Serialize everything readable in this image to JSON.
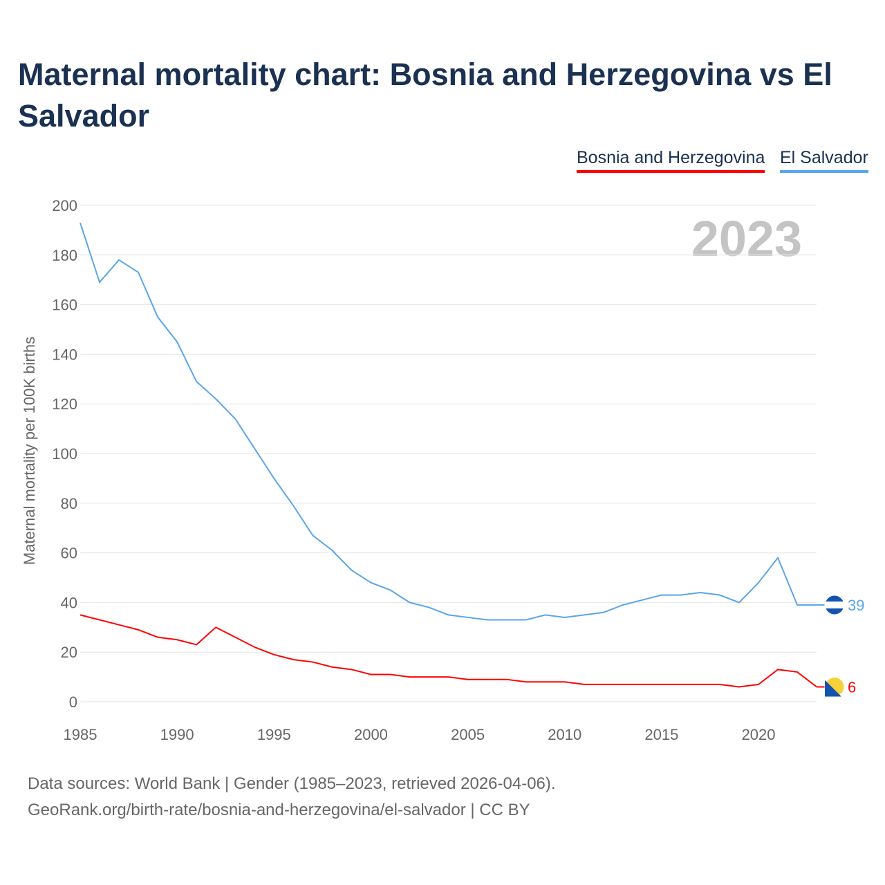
{
  "title": "Maternal mortality chart: Bosnia and Herzegovina vs El Salvador",
  "footer": {
    "line1": "Data sources: World Bank | Gender (1985–2023, retrieved 2026-04-06).",
    "line2": "GeoRank.org/birth-rate/bosnia-and-herzegovina/el-salvador | CC BY"
  },
  "chart_data": {
    "type": "line",
    "title": "Maternal mortality chart: Bosnia and Herzegovina vs El Salvador",
    "ylabel": "Maternal mortality per 100K births",
    "xlabel": "",
    "year_label": "2023",
    "ylim": [
      0,
      200
    ],
    "xlim": [
      1985,
      2023
    ],
    "yticks": [
      0,
      20,
      40,
      60,
      80,
      100,
      120,
      140,
      160,
      180,
      200
    ],
    "xticks": [
      1985,
      1990,
      1995,
      2000,
      2005,
      2010,
      2015,
      2020
    ],
    "grid": true,
    "legend_position": "top-right",
    "x": [
      1985,
      1986,
      1987,
      1988,
      1989,
      1990,
      1991,
      1992,
      1993,
      1994,
      1995,
      1996,
      1997,
      1998,
      1999,
      2000,
      2001,
      2002,
      2003,
      2004,
      2005,
      2006,
      2007,
      2008,
      2009,
      2010,
      2011,
      2012,
      2013,
      2014,
      2015,
      2016,
      2017,
      2018,
      2019,
      2020,
      2021,
      2022,
      2023
    ],
    "series": [
      {
        "name": "Bosnia and Herzegovina",
        "color": "#ff0000",
        "end_label": "6",
        "values": [
          35,
          33,
          31,
          29,
          26,
          25,
          23,
          30,
          26,
          22,
          19,
          17,
          16,
          14,
          13,
          11,
          11,
          10,
          10,
          10,
          9,
          9,
          9,
          8,
          8,
          8,
          7,
          7,
          7,
          7,
          7,
          7,
          7,
          7,
          6,
          7,
          13,
          12,
          6
        ]
      },
      {
        "name": "El Salvador",
        "color": "#5aa5ea",
        "end_label": "39",
        "values": [
          193,
          169,
          178,
          173,
          155,
          145,
          129,
          122,
          114,
          102,
          90,
          79,
          67,
          61,
          53,
          48,
          45,
          40,
          38,
          35,
          34,
          33,
          33,
          33,
          35,
          34,
          35,
          36,
          39,
          41,
          43,
          43,
          44,
          43,
          40,
          48,
          58,
          39,
          39
        ]
      }
    ]
  }
}
